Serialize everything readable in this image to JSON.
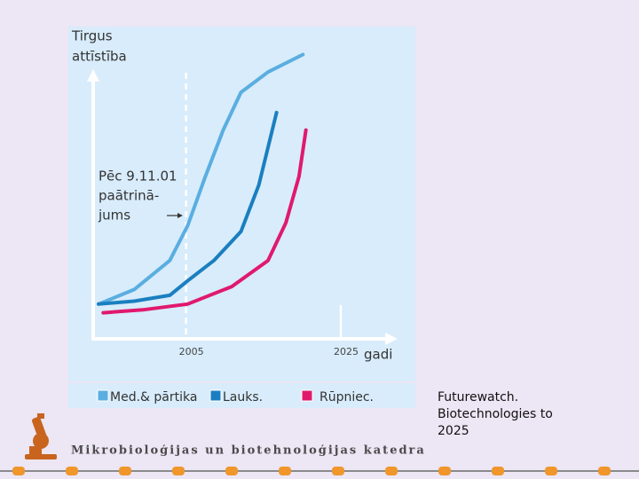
{
  "chart_data": {
    "type": "line",
    "y_label": [
      "Tirgus",
      "attīstība"
    ],
    "x_label": "gadi",
    "annotation": [
      "Pēc 9.11.01",
      "paātrinā-",
      "jums"
    ],
    "xlim": [
      1993,
      2032
    ],
    "xticks": [
      2005,
      2025
    ],
    "ylim": [
      0,
      100
    ],
    "series": [
      {
        "name": "Med.& pārtika",
        "color": "#5aaee0",
        "x": [
          1993.7,
          1998.3,
          2002.9,
          2005.2,
          2007.5,
          2009.8,
          2012.1,
          2015.6,
          2020.1
        ],
        "values": [
          12,
          17,
          27,
          39,
          56,
          72,
          85,
          92,
          98
        ]
      },
      {
        "name": "Lauks.",
        "color": "#1a7fc0",
        "x": [
          1993.7,
          1998.3,
          2002.9,
          2005.2,
          2008.6,
          2012.1,
          2014.4,
          2016.7
        ],
        "values": [
          12,
          13,
          15,
          20,
          27,
          37,
          53,
          78
        ]
      },
      {
        "name": "Rūpniec.",
        "color": "#e0196e",
        "x": [
          1994.3,
          1999.4,
          2005.2,
          2010.9,
          2015.6,
          2017.9,
          2019.6,
          2020.5
        ],
        "values": [
          9,
          10,
          12,
          18,
          27,
          40,
          56,
          72
        ]
      }
    ]
  },
  "source": [
    "Futurewatch.",
    "Biotechnologies to",
    "2025"
  ],
  "footer": "Mikrobioloģijas un biotehnoloģijas katedra"
}
